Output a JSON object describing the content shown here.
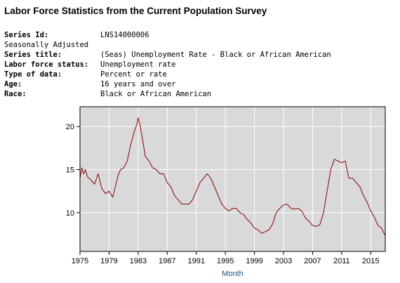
{
  "page": {
    "title": "Labor Force Statistics from the Current Population Survey"
  },
  "series_info": {
    "series_id_label": "Series Id:",
    "series_id_value": "LNS14000006",
    "seasonal_note": "Seasonally Adjusted",
    "series_title_label": "Series title:",
    "series_title_value": "(Seas) Unemployment Rate - Black or African American",
    "labor_force_status_label": "Labor force status:",
    "labor_force_status_value": "Unemployment rate",
    "type_of_data_label": "Type of data:",
    "type_of_data_value": "Percent or rate",
    "age_label": "Age:",
    "age_value": "16 years and over",
    "race_label": "Race:",
    "race_value": "Black or African American"
  },
  "colors": {
    "plot_background": "#d9d9d9",
    "grid": "#ffffff",
    "line": "#8b0000",
    "axis_title": "#1f4e8c"
  },
  "chart_data": {
    "type": "line",
    "title": "",
    "xlabel": "Month",
    "ylabel": "",
    "xlim": [
      1975.0,
      2017.0
    ],
    "ylim": [
      5.5,
      22.3
    ],
    "x_ticks": [
      1975,
      1979,
      1983,
      1987,
      1991,
      1995,
      1999,
      2003,
      2007,
      2011,
      2015
    ],
    "y_ticks": [
      10,
      15,
      20
    ],
    "grid": true,
    "legend": "none",
    "series": [
      {
        "x": [
          1975.0,
          1975.25,
          1975.5,
          1975.75,
          1976.0,
          1976.5,
          1977.0,
          1977.5,
          1978.0,
          1978.5,
          1979.0,
          1979.5,
          1980.0,
          1980.3,
          1980.6,
          1981.0,
          1981.5,
          1982.0,
          1982.5,
          1982.8,
          1983.0,
          1983.3,
          1983.6,
          1984.0,
          1984.5,
          1985.0,
          1985.5,
          1986.0,
          1986.5,
          1987.0,
          1987.5,
          1988.0,
          1988.5,
          1989.0,
          1989.5,
          1990.0,
          1990.5,
          1991.0,
          1991.5,
          1992.0,
          1992.5,
          1993.0,
          1993.5,
          1994.0,
          1994.5,
          1995.0,
          1995.5,
          1996.0,
          1996.5,
          1997.0,
          1997.5,
          1998.0,
          1998.5,
          1999.0,
          1999.5,
          2000.0,
          2000.5,
          2001.0,
          2001.5,
          2002.0,
          2002.5,
          2003.0,
          2003.5,
          2004.0,
          2004.5,
          2005.0,
          2005.5,
          2006.0,
          2006.5,
          2007.0,
          2007.5,
          2008.0,
          2008.5,
          2009.0,
          2009.5,
          2010.0,
          2010.5,
          2011.0,
          2011.5,
          2012.0,
          2012.5,
          2013.0,
          2013.5,
          2014.0,
          2014.5,
          2015.0,
          2015.5,
          2016.0,
          2016.5,
          2017.0
        ],
        "values": [
          14.0,
          15.2,
          14.5,
          15.0,
          14.2,
          13.8,
          13.3,
          14.5,
          12.8,
          12.2,
          12.5,
          11.8,
          13.5,
          14.5,
          15.0,
          15.2,
          16.0,
          18.0,
          19.5,
          20.2,
          21.0,
          20.0,
          18.5,
          16.5,
          16.0,
          15.2,
          15.0,
          14.5,
          14.5,
          13.5,
          13.0,
          12.0,
          11.5,
          11.0,
          11.0,
          11.0,
          11.5,
          12.5,
          13.5,
          14.0,
          14.5,
          14.0,
          13.0,
          12.0,
          11.0,
          10.5,
          10.2,
          10.5,
          10.5,
          10.0,
          9.8,
          9.2,
          8.8,
          8.2,
          8.0,
          7.6,
          7.8,
          8.0,
          8.7,
          10.0,
          10.5,
          10.9,
          11.0,
          10.5,
          10.4,
          10.5,
          10.2,
          9.4,
          9.0,
          8.5,
          8.4,
          8.6,
          10.0,
          12.5,
          15.0,
          16.2,
          16.0,
          15.8,
          16.0,
          14.0,
          14.0,
          13.5,
          13.0,
          12.0,
          11.2,
          10.2,
          9.5,
          8.5,
          8.2,
          7.3
        ]
      }
    ]
  }
}
